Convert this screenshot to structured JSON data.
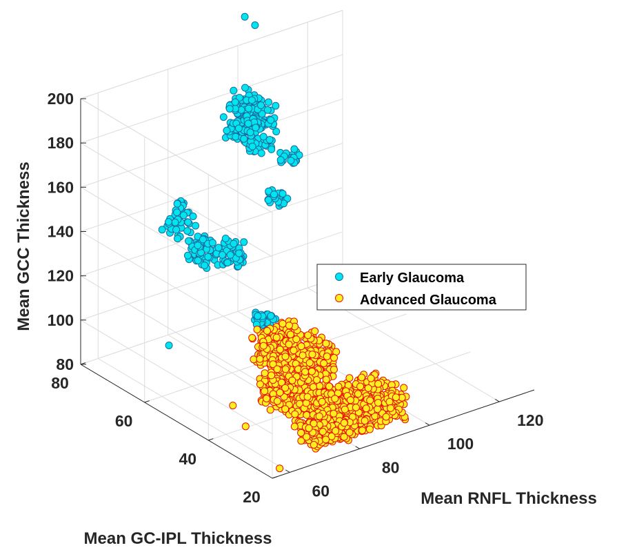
{
  "chart_data": {
    "type": "scatter3d",
    "title": "",
    "xlabel": "Mean RNFL Thickness",
    "ylabel": "Mean GC-IPL Thickness",
    "zlabel": "Mean GCC Thickness",
    "xlim": [
      55,
      130
    ],
    "ylim": [
      20,
      80
    ],
    "zlim": [
      80,
      200
    ],
    "xticks": [
      "60",
      "80",
      "100",
      "120"
    ],
    "yticks": [
      "20",
      "40",
      "60",
      "80"
    ],
    "zticks": [
      "80",
      "100",
      "120",
      "140",
      "160",
      "180",
      "200"
    ],
    "grid": true,
    "legend": {
      "placement": "center-right",
      "entries": [
        "Early Glaucoma",
        "Advanced Glaucoma"
      ]
    },
    "series": [
      {
        "name": "Early Glaucoma",
        "color": "#00e5ee",
        "edge_color": "#1a6aa0",
        "clusters": [
          {
            "x": [
              88,
              95
            ],
            "y": [
              62,
              72
            ],
            "z": [
              170,
              192
            ],
            "n": 220
          },
          {
            "x": [
              70,
              76
            ],
            "y": [
              66,
              72
            ],
            "z": [
              140,
              152
            ],
            "n": 45
          },
          {
            "x": [
              70,
              75
            ],
            "y": [
              58,
              64
            ],
            "z": [
              133,
              143
            ],
            "n": 55
          },
          {
            "x": [
              73,
              78
            ],
            "y": [
              52,
              58
            ],
            "z": [
              136,
              146
            ],
            "n": 55
          },
          {
            "x": [
              78,
              82
            ],
            "y": [
              48,
              52
            ],
            "z": [
              110,
              116
            ],
            "n": 30
          },
          {
            "x": [
              95,
              98
            ],
            "y": [
              62,
              66
            ],
            "z": [
              145,
              150
            ],
            "n": 25
          },
          {
            "x": [
              104,
              108
            ],
            "y": [
              68,
              72
            ],
            "z": [
              152,
              157
            ],
            "n": 20
          }
        ],
        "points": [
          {
            "x": 62,
            "y": 60,
            "z": 102
          },
          {
            "x": 102,
            "y": 80,
            "z": 212
          },
          {
            "x": 104,
            "y": 79,
            "z": 208
          }
        ]
      },
      {
        "name": "Advanced Glaucoma",
        "color": "#ffee22",
        "edge_color": "#e81000",
        "clusters": [
          {
            "x": [
              76,
              88
            ],
            "y": [
              35,
              50
            ],
            "z": [
              95,
              110
            ],
            "n": 420
          },
          {
            "x": [
              72,
              84
            ],
            "y": [
              30,
              44
            ],
            "z": [
              85,
              98
            ],
            "n": 320
          },
          {
            "x": [
              80,
              96
            ],
            "y": [
              22,
              34
            ],
            "z": [
              82,
              96
            ],
            "n": 420
          },
          {
            "x": [
              70,
              80
            ],
            "y": [
              22,
              30
            ],
            "z": [
              82,
              90
            ],
            "n": 200
          }
        ],
        "points": [
          {
            "x": 62,
            "y": 40,
            "z": 92
          },
          {
            "x": 62,
            "y": 36,
            "z": 86
          },
          {
            "x": 58,
            "y": 21,
            "z": 82
          }
        ]
      }
    ]
  }
}
